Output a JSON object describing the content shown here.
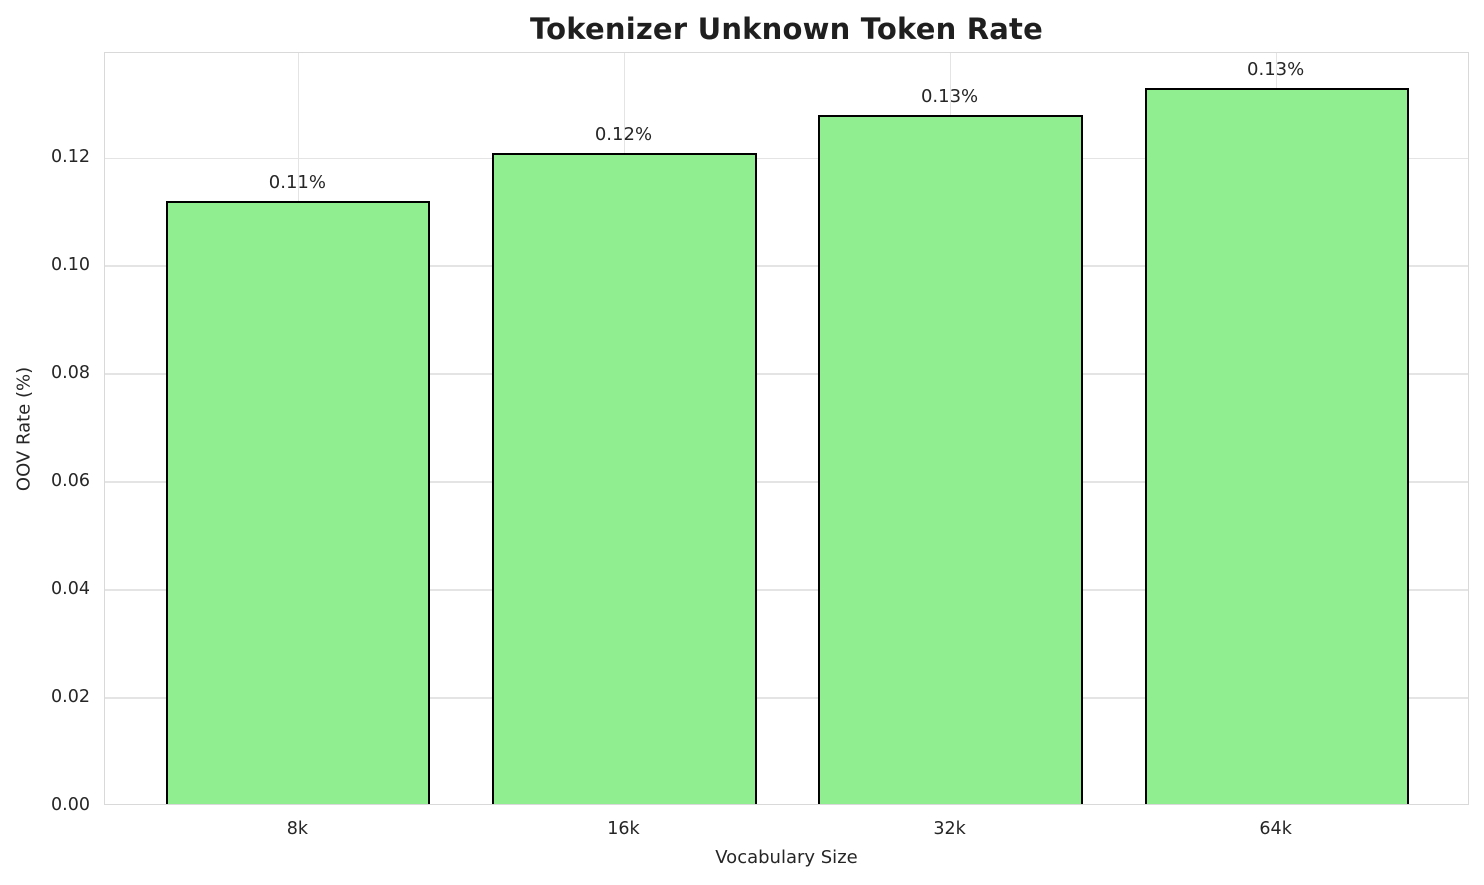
{
  "chart_data": {
    "type": "bar",
    "title": "Tokenizer Unknown Token Rate",
    "xlabel": "Vocabulary Size",
    "ylabel": "OOV Rate (%)",
    "categories": [
      "8k",
      "16k",
      "32k",
      "64k"
    ],
    "values": [
      0.112,
      0.121,
      0.128,
      0.133
    ],
    "bar_labels": [
      "0.11%",
      "0.12%",
      "0.13%",
      "0.13%"
    ],
    "ytick_labels": [
      "0.00",
      "0.02",
      "0.04",
      "0.06",
      "0.08",
      "0.10",
      "0.12"
    ],
    "ytick_values": [
      0,
      0.02,
      0.04,
      0.06,
      0.08,
      0.1,
      0.12
    ],
    "ylim": [
      0,
      0.1395
    ],
    "xlim": [
      -0.593,
      3.593
    ],
    "bar_width": 0.81,
    "grid": true,
    "legend_position": "none",
    "colors": {
      "bar_fill": "#90EE90",
      "bar_edge": "#000000",
      "grid": "#e4e4e4",
      "spine": "#d9d9d9",
      "text": "#262626",
      "title_text": "#1f1f1f",
      "background": "#ffffff"
    }
  }
}
